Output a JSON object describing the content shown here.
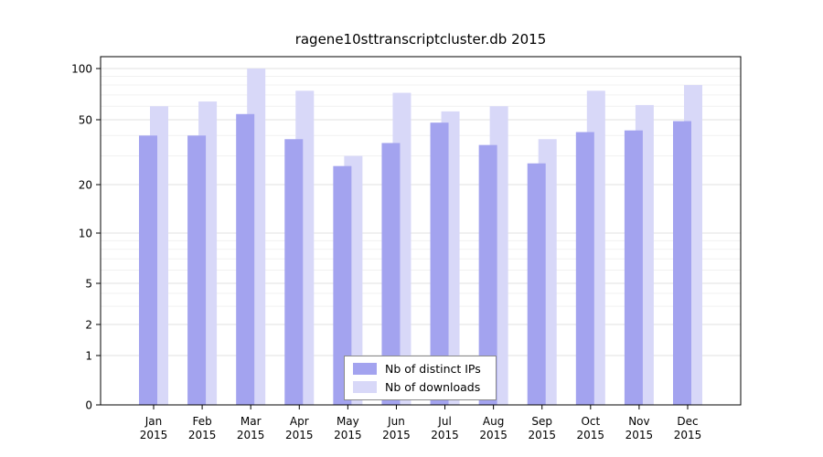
{
  "chart_data": {
    "type": "bar",
    "title": "ragene10sttranscriptcluster.db 2015",
    "year": "2015",
    "months": [
      "Jan",
      "Feb",
      "Mar",
      "Apr",
      "May",
      "Jun",
      "Jul",
      "Aug",
      "Sep",
      "Oct",
      "Nov",
      "Dec"
    ],
    "categories": [
      "Jan 2015",
      "Feb 2015",
      "Mar 2015",
      "Apr 2015",
      "May 2015",
      "Jun 2015",
      "Jul 2015",
      "Aug 2015",
      "Sep 2015",
      "Oct 2015",
      "Nov 2015",
      "Dec 2015"
    ],
    "y_ticks": [
      0,
      1,
      2,
      5,
      10,
      20,
      50,
      100
    ],
    "y_scale": "log (symlog, 0 shown at axis base)",
    "ylim": [
      0,
      100
    ],
    "grid": true,
    "legend_position": "inside-bottom-center",
    "series": [
      {
        "name": "Nb of distinct IPs",
        "color": "#a3a3ef",
        "values": [
          40,
          40,
          54,
          38,
          26,
          36,
          48,
          35,
          27,
          42,
          43,
          49
        ]
      },
      {
        "name": "Nb of downloads",
        "color": "#d8d8f8",
        "values": [
          60,
          64,
          100,
          74,
          30,
          72,
          56,
          60,
          38,
          74,
          61,
          80
        ]
      }
    ]
  }
}
